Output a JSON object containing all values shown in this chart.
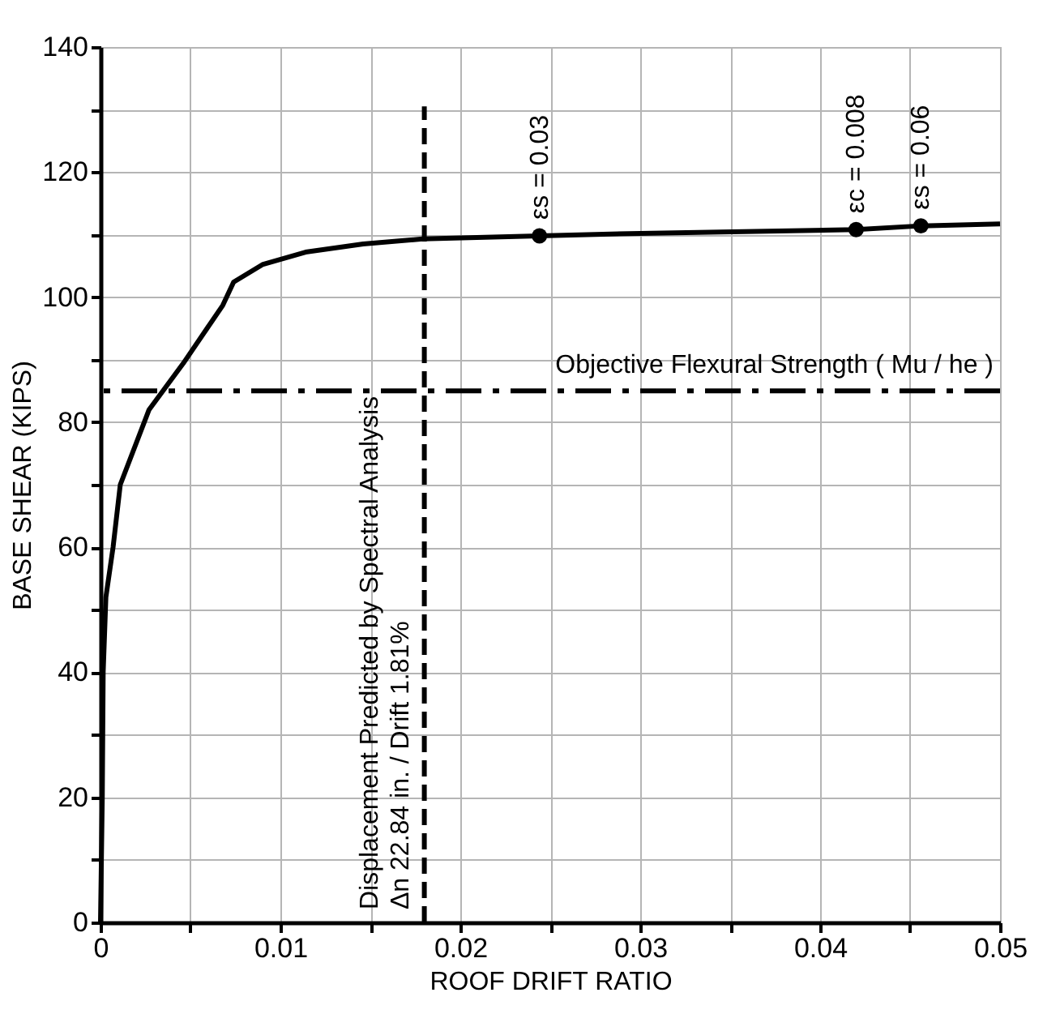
{
  "chart_data": {
    "type": "line",
    "xlabel": "ROOF DRIFT RATIO",
    "ylabel": "BASE SHEAR (KIPS)",
    "xlim": [
      0,
      0.05
    ],
    "ylim": [
      0,
      140
    ],
    "xticks": [
      0,
      {
        "value": 0.005,
        "label": null
      },
      0.01,
      {
        "value": 0.015,
        "label": null
      },
      0.02,
      {
        "value": 0.025,
        "label": null
      },
      0.03,
      {
        "value": 0.035,
        "label": null
      },
      0.04,
      {
        "value": 0.045,
        "label": null
      },
      0.05
    ],
    "yticks": [
      0,
      {
        "value": 10,
        "label": null
      },
      20,
      {
        "value": 30,
        "label": null
      },
      40,
      {
        "value": 50,
        "label": null
      },
      60,
      {
        "value": 70,
        "label": null
      },
      80,
      {
        "value": 90,
        "label": null
      },
      100,
      {
        "value": 110,
        "label": null
      },
      120,
      {
        "value": 130,
        "label": null
      },
      140
    ],
    "grid": true,
    "series": [
      {
        "color": "#000000",
        "line_style": "solid",
        "marker": "none",
        "x": [
          0,
          0.0001,
          0.00015,
          0.0003,
          0.0007,
          0.0011,
          0.0027,
          0.0046,
          0.0068,
          0.0074,
          0.009,
          0.0114,
          0.0146,
          0.0179,
          0.0244,
          0.03,
          0.042,
          0.0456,
          0.05
        ],
        "values": [
          0,
          20,
          40,
          52,
          60,
          70,
          82,
          89.4,
          98.7,
          102.4,
          105.2,
          107.2,
          108.5,
          109.3,
          109.8,
          110.2,
          110.8,
          111.4,
          111.7
        ]
      },
      {
        "type": "scatter",
        "color": "#000000",
        "marker": "circle",
        "x": [
          0.0244,
          0.042,
          0.0456
        ],
        "values": [
          109.8,
          110.8,
          111.4
        ]
      },
      {
        "type": "line",
        "color": "#000000",
        "line_style": "dashed",
        "marker": "none",
        "x": [
          0.018,
          0.018
        ],
        "values": [
          0,
          130.5
        ]
      }
    ],
    "ref_lines": [
      {
        "axis": "y",
        "value": 85,
        "label": "Objective Flexural Strength ( Mu / he )",
        "color": "#000000",
        "line_style": "dashdot"
      }
    ],
    "annotations": [
      {
        "text": "εs = 0.03",
        "x": 0.0244,
        "y": 109.8
      },
      {
        "text": "εc = 0.008",
        "x": 0.042,
        "y": 110.8
      },
      {
        "text": "εs = 0.06",
        "x": 0.0456,
        "y": 111.4
      },
      {
        "text": "Displacement Predicted by Spectral Analysis\nΔn 22.84 in. /  Drift 1.81%",
        "x": 0.018,
        "y": 0
      }
    ]
  }
}
